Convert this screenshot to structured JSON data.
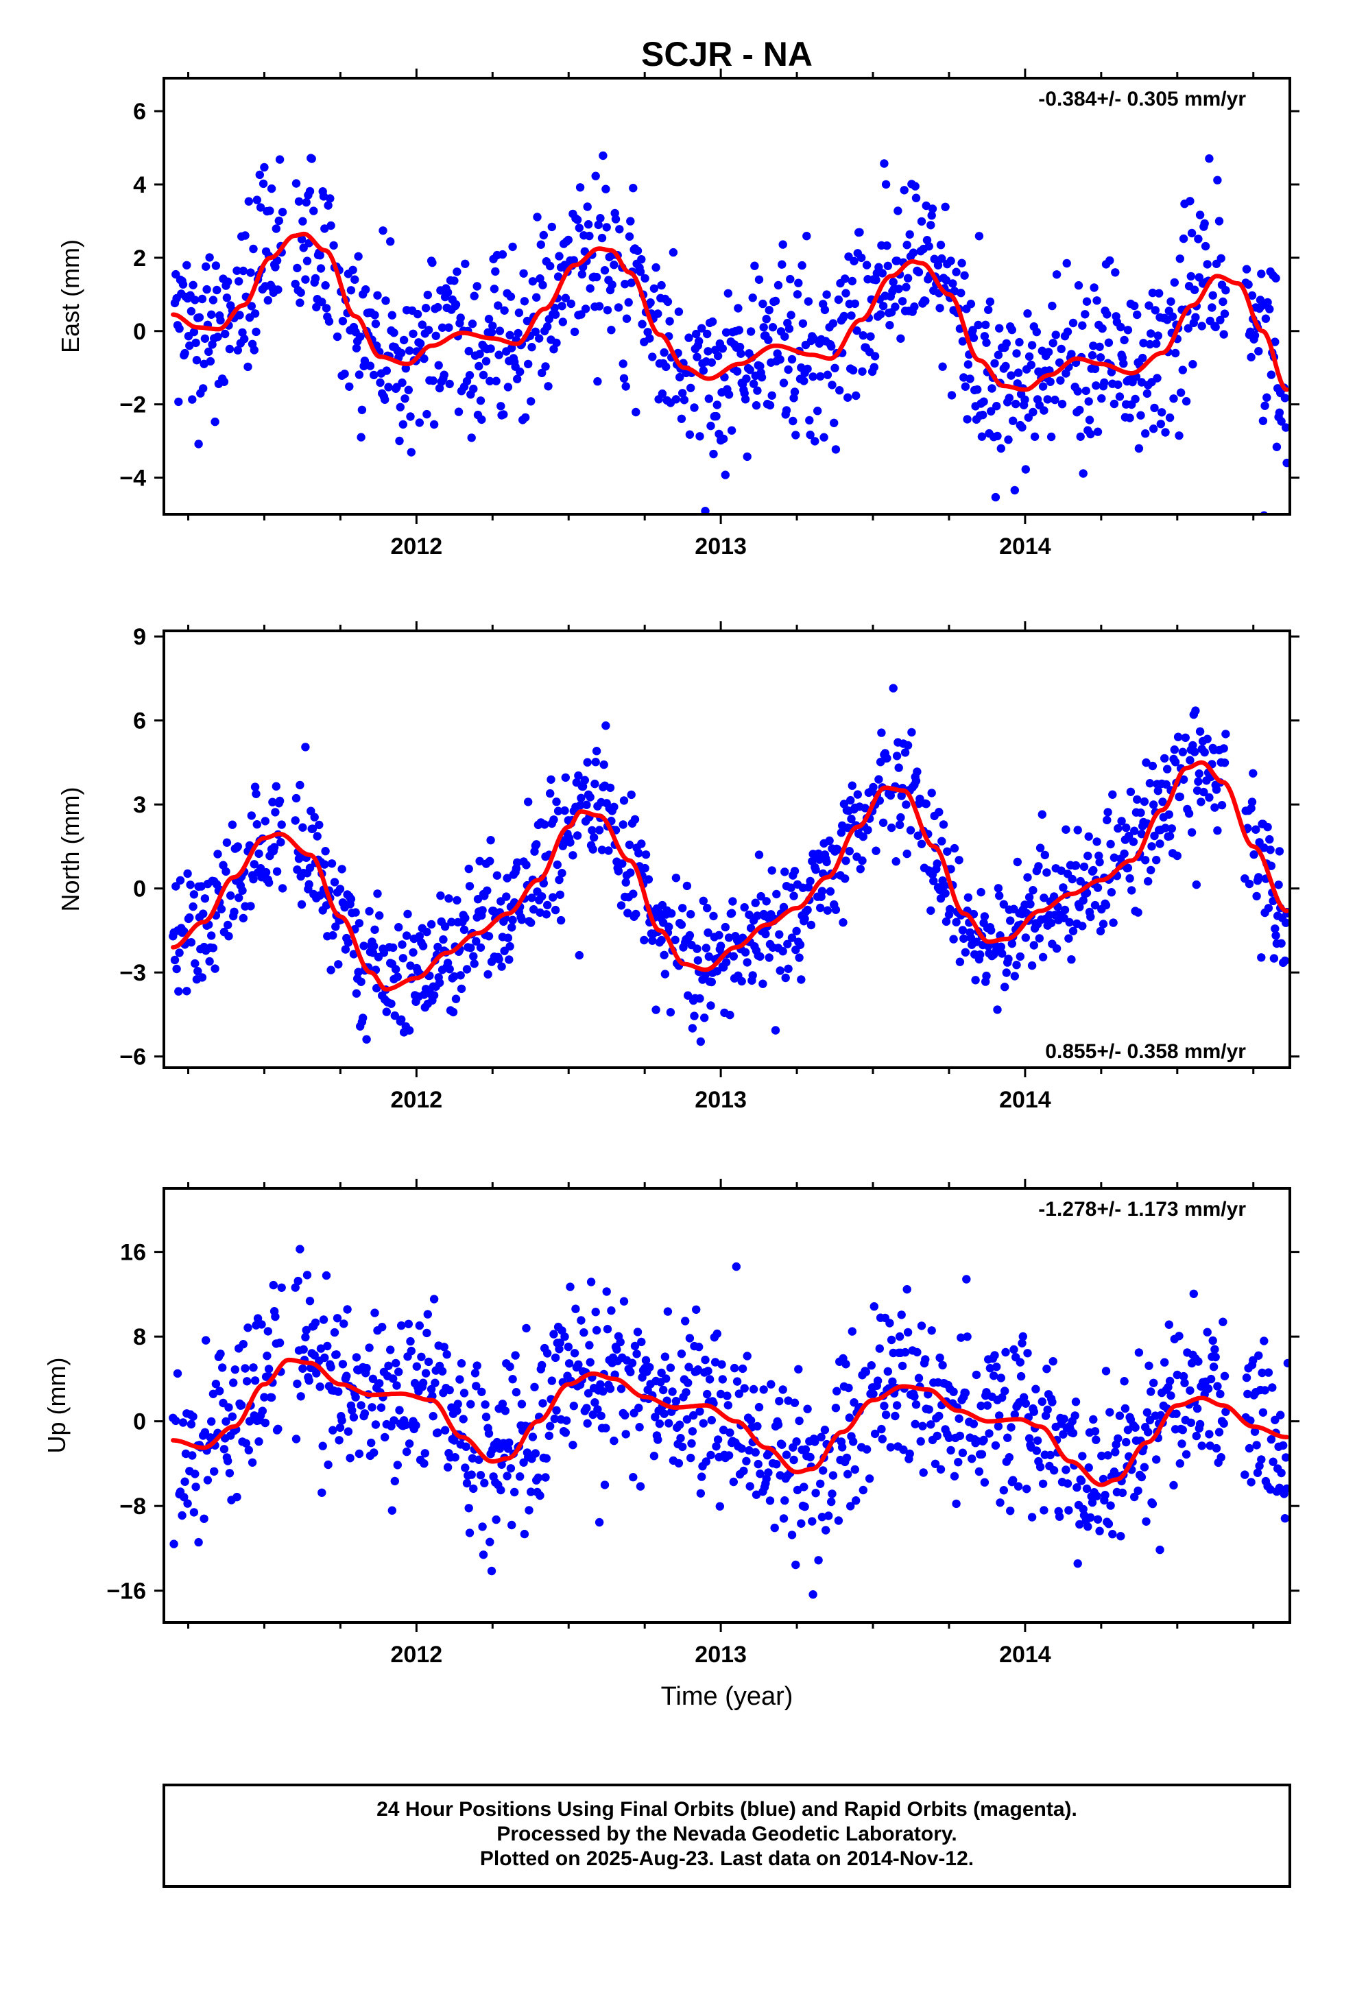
{
  "title": "SCJR - NA",
  "x_axis_label": "Time (year)",
  "footer": {
    "lines": [
      "24 Hour Positions Using Final Orbits (blue) and Rapid Orbits (magenta).",
      "Processed by the Nevada Geodetic Laboratory.",
      "Plotted on 2025-Aug-23. Last data on 2014-Nov-12."
    ]
  },
  "colors": {
    "final_orbits": "#0000ff",
    "rapid_orbits": "#ff00ff",
    "model": "#ff0000",
    "frame": "#000000"
  },
  "chart_data": [
    {
      "type": "scatter",
      "name": "east",
      "ylabel": "East (mm)",
      "rate_label": "-0.384+/- 0.305 mm/yr",
      "rate_position": "top-right",
      "xlim": [
        2011.17,
        2014.87
      ],
      "ylim": [
        -5,
        6.9
      ],
      "xticks": [
        2012,
        2013,
        2014
      ],
      "xticklabels": [
        "2012",
        "2013",
        "2014"
      ],
      "yticks": [
        6,
        4,
        2,
        0,
        -2,
        -4
      ],
      "yticklabels": [
        "6",
        "4",
        "2",
        "0",
        "−2",
        "−4"
      ],
      "grid": false,
      "scatter_spread": 1.3,
      "model_curve": {
        "x": [
          2011.2,
          2011.28,
          2011.35,
          2011.43,
          2011.52,
          2011.6,
          2011.63,
          2011.7,
          2011.8,
          2011.88,
          2011.97,
          2012.05,
          2012.15,
          2012.25,
          2012.33,
          2012.42,
          2012.52,
          2012.6,
          2012.64,
          2012.7,
          2012.8,
          2012.88,
          2012.96,
          2013.06,
          2013.18,
          2013.3,
          2013.36,
          2013.46,
          2013.56,
          2013.63,
          2013.66,
          2013.75,
          2013.85,
          2013.93,
          2014.0,
          2014.08,
          2014.17,
          2014.25,
          2014.35,
          2014.45,
          2014.55,
          2014.63,
          2014.7,
          2014.78,
          2014.86
        ],
        "y": [
          0.45,
          0.1,
          0.05,
          0.7,
          2.0,
          2.6,
          2.65,
          2.2,
          0.4,
          -0.7,
          -0.9,
          -0.4,
          -0.05,
          -0.2,
          -0.35,
          0.6,
          1.8,
          2.25,
          2.2,
          1.6,
          -0.1,
          -1.0,
          -1.3,
          -0.9,
          -0.4,
          -0.65,
          -0.75,
          0.3,
          1.5,
          1.9,
          1.85,
          1.0,
          -0.8,
          -1.5,
          -1.6,
          -1.2,
          -0.75,
          -0.9,
          -1.15,
          -0.6,
          0.7,
          1.5,
          1.3,
          0.0,
          -1.6
        ]
      }
    },
    {
      "type": "scatter",
      "name": "north",
      "ylabel": "North (mm)",
      "rate_label": "0.855+/- 0.358 mm/yr",
      "rate_position": "bottom-right",
      "xlim": [
        2011.17,
        2014.87
      ],
      "ylim": [
        -6.4,
        9.2
      ],
      "xticks": [
        2012,
        2013,
        2014
      ],
      "xticklabels": [
        "2012",
        "2013",
        "2014"
      ],
      "yticks": [
        9,
        6,
        3,
        0,
        -3,
        -6
      ],
      "yticklabels": [
        "9",
        "6",
        "3",
        "0",
        "−3",
        "−6"
      ],
      "grid": false,
      "scatter_spread": 1.2,
      "model_curve": {
        "x": [
          2011.2,
          2011.3,
          2011.4,
          2011.5,
          2011.55,
          2011.65,
          2011.75,
          2011.85,
          2011.9,
          2012.0,
          2012.1,
          2012.2,
          2012.3,
          2012.4,
          2012.5,
          2012.54,
          2012.6,
          2012.7,
          2012.8,
          2012.88,
          2012.95,
          2013.05,
          2013.15,
          2013.25,
          2013.35,
          2013.45,
          2013.54,
          2013.6,
          2013.7,
          2013.8,
          2013.88,
          2013.94,
          2014.05,
          2014.15,
          2014.25,
          2014.35,
          2014.45,
          2014.53,
          2014.58,
          2014.65,
          2014.75,
          2014.86
        ],
        "y": [
          -2.1,
          -1.2,
          0.4,
          1.8,
          1.95,
          1.2,
          -1.0,
          -3.0,
          -3.6,
          -3.2,
          -2.3,
          -1.6,
          -0.9,
          0.3,
          2.2,
          2.75,
          2.6,
          1.0,
          -1.5,
          -2.7,
          -2.9,
          -2.1,
          -1.3,
          -0.7,
          0.4,
          2.2,
          3.6,
          3.5,
          1.5,
          -0.9,
          -1.9,
          -1.8,
          -0.8,
          -0.2,
          0.3,
          1.0,
          2.8,
          4.3,
          4.5,
          3.8,
          1.5,
          -0.8
        ]
      }
    },
    {
      "type": "scatter",
      "name": "up",
      "ylabel": "Up (mm)",
      "rate_label": "-1.278+/- 1.173 mm/yr",
      "rate_position": "top-right",
      "xlim": [
        2011.17,
        2014.87
      ],
      "ylim": [
        -19,
        22
      ],
      "xticks": [
        2012,
        2013,
        2014
      ],
      "xticklabels": [
        "2012",
        "2013",
        "2014"
      ],
      "yticks": [
        16,
        8,
        0,
        -8,
        -16
      ],
      "yticklabels": [
        "16",
        "8",
        "0",
        "−8",
        "−16"
      ],
      "grid": false,
      "scatter_spread": 4.3,
      "model_curve": {
        "x": [
          2011.2,
          2011.3,
          2011.4,
          2011.5,
          2011.58,
          2011.65,
          2011.75,
          2011.85,
          2011.95,
          2012.05,
          2012.15,
          2012.25,
          2012.3,
          2012.4,
          2012.5,
          2012.58,
          2012.65,
          2012.75,
          2012.85,
          2012.95,
          2013.05,
          2013.15,
          2013.25,
          2013.3,
          2013.4,
          2013.5,
          2013.6,
          2013.68,
          2013.78,
          2013.88,
          2013.98,
          2014.05,
          2014.15,
          2014.25,
          2014.3,
          2014.4,
          2014.5,
          2014.58,
          2014.65,
          2014.75,
          2014.86
        ],
        "y": [
          -1.8,
          -2.5,
          -0.5,
          3.5,
          5.8,
          5.5,
          3.5,
          2.5,
          2.6,
          2.0,
          -1.5,
          -3.8,
          -3.5,
          0.0,
          3.5,
          4.5,
          4.0,
          2.3,
          1.3,
          1.5,
          0.0,
          -2.5,
          -4.8,
          -4.5,
          -1.0,
          2.0,
          3.3,
          3.0,
          1.0,
          0.0,
          0.2,
          -0.5,
          -3.8,
          -6.0,
          -5.5,
          -2.0,
          1.5,
          2.2,
          1.5,
          -0.5,
          -1.5
        ]
      }
    }
  ]
}
